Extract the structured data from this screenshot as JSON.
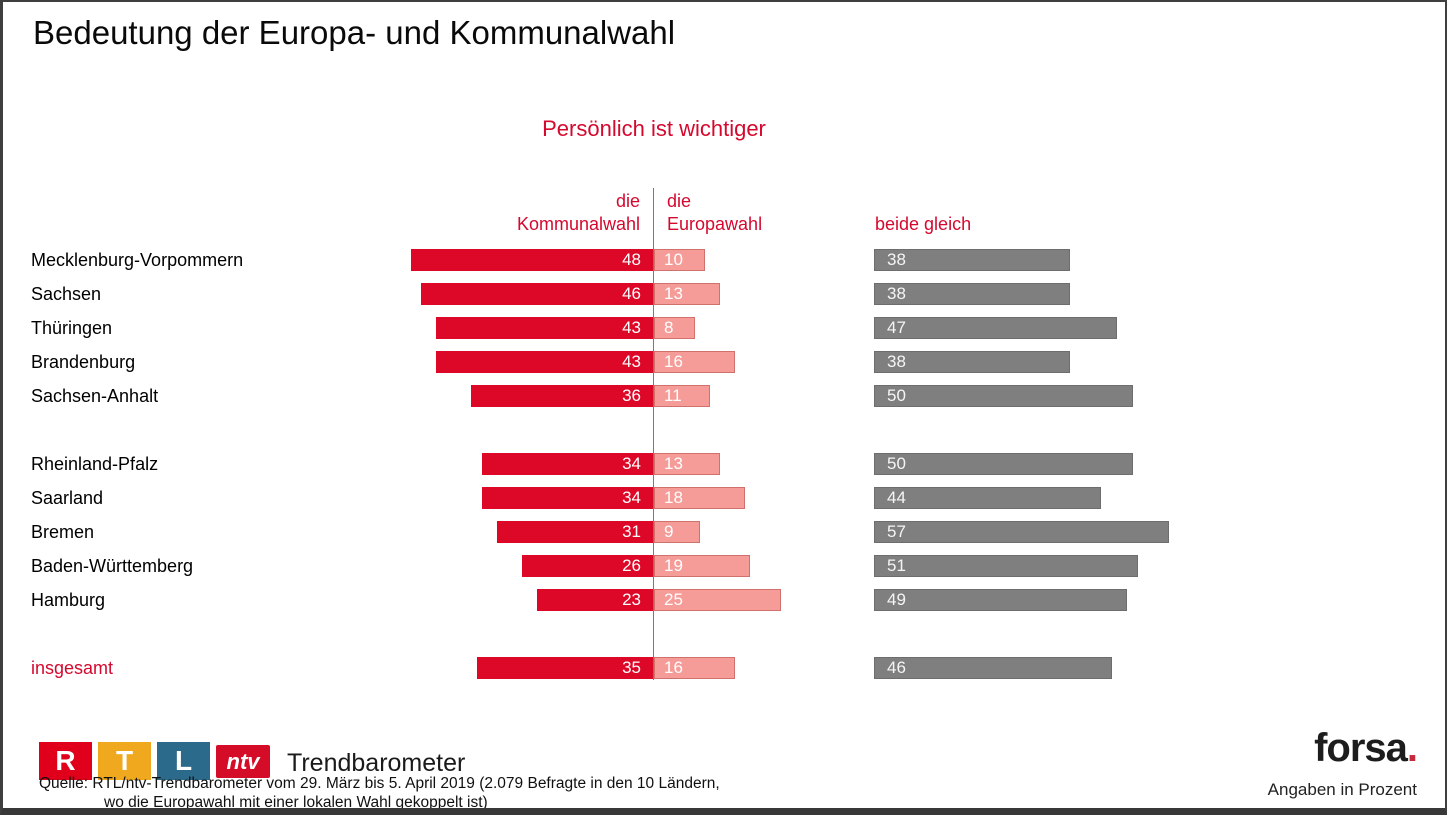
{
  "title": "Bedeutung der Europa- und Kommunalwahl",
  "subtitle": "Persönlich ist wichtiger",
  "columns": {
    "kommunalwahl_line1": "die",
    "kommunalwahl_line2": "Kommunalwahl",
    "europawahl_line1": "die",
    "europawahl_line2": "Europawahl",
    "beide_gleich": "beide gleich"
  },
  "chart_data": {
    "type": "bar",
    "subtype": "diverging-horizontal",
    "unit": "percent",
    "title": "Persönlich ist wichtiger",
    "series": [
      "die Kommunalwahl",
      "die Europawahl",
      "beide gleich"
    ],
    "colors": {
      "kommunalwahl": "#dd0728",
      "europawahl": "#f59b98",
      "beide_gleich": "#7f7f7f"
    },
    "groups": [
      {
        "name": "group-1",
        "rows": [
          {
            "label": "Mecklenburg-Vorpommern",
            "kommunalwahl": 48,
            "europawahl": 10,
            "beide_gleich": 38
          },
          {
            "label": "Sachsen",
            "kommunalwahl": 46,
            "europawahl": 13,
            "beide_gleich": 38
          },
          {
            "label": "Thüringen",
            "kommunalwahl": 43,
            "europawahl": 8,
            "beide_gleich": 47
          },
          {
            "label": "Brandenburg",
            "kommunalwahl": 43,
            "europawahl": 16,
            "beide_gleich": 38
          },
          {
            "label": "Sachsen-Anhalt",
            "kommunalwahl": 36,
            "europawahl": 11,
            "beide_gleich": 50
          }
        ]
      },
      {
        "name": "group-2",
        "rows": [
          {
            "label": "Rheinland-Pfalz",
            "kommunalwahl": 34,
            "europawahl": 13,
            "beide_gleich": 50
          },
          {
            "label": "Saarland",
            "kommunalwahl": 34,
            "europawahl": 18,
            "beide_gleich": 44
          },
          {
            "label": "Bremen",
            "kommunalwahl": 31,
            "europawahl": 9,
            "beide_gleich": 57
          },
          {
            "label": "Baden-Württemberg",
            "kommunalwahl": 26,
            "europawahl": 19,
            "beide_gleich": 51
          },
          {
            "label": "Hamburg",
            "kommunalwahl": 23,
            "europawahl": 25,
            "beide_gleich": 49
          }
        ]
      },
      {
        "name": "total",
        "rows": [
          {
            "label": "insgesamt",
            "kommunalwahl": 35,
            "europawahl": 16,
            "beide_gleich": 46,
            "highlight": true
          }
        ]
      }
    ]
  },
  "footer": {
    "rtl_letters": [
      "R",
      "T",
      "L"
    ],
    "ntv_label": "ntv",
    "brand_caption": "Trendbarometer",
    "source_line1": "Quelle: RTL/ntv-Trendbarometer vom 29. März bis 5. April 2019 (2.079 Befragte in den 10 Ländern,",
    "source_line2": "wo die Europawahl mit einer lokalen Wahl gekoppelt ist)",
    "forsa_label": "forsa",
    "forsa_dot": ".",
    "angaben": "Angaben in Prozent"
  },
  "colors": {
    "accent_red": "#d5082e",
    "bar_red": "#dd0728",
    "bar_pink": "#f59b98",
    "bar_gray": "#7f7f7f",
    "rtl_red": "#e0001b",
    "rtl_orange": "#f0a81e",
    "rtl_teal": "#2b6a8a",
    "ntv_red": "#d40c27"
  }
}
